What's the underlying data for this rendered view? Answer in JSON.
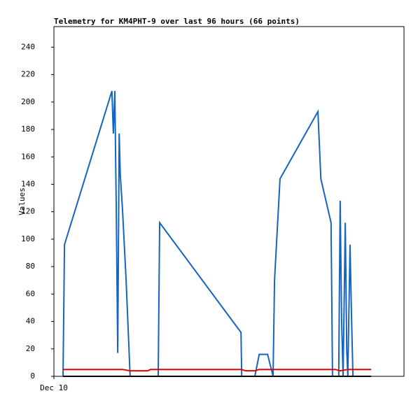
{
  "chart_data": {
    "type": "line",
    "title": "Telemetry for KM4PHT-9 over last 96 hours (66 points)",
    "y_label": "Values",
    "xlim": [
      0,
      96
    ],
    "xticks": [
      {
        "value": 0,
        "label": "Dec 10"
      }
    ],
    "ylim": [
      0,
      255
    ],
    "yticks": [
      0,
      20,
      40,
      60,
      80,
      100,
      120,
      140,
      160,
      180,
      200,
      220,
      240
    ],
    "grid": false,
    "series": [
      {
        "color": "#1565c0",
        "x": [
          2.5,
          2.7,
          2.9,
          15.9,
          16.3,
          16.7,
          17.1,
          17.5,
          17.9,
          18.2,
          18.8,
          19.8,
          20.9,
          28.6,
          29.0,
          51.3,
          51.5,
          55.1,
          56.3,
          58.6,
          60.1,
          60.5,
          62.0,
          72.4,
          73.2,
          76.0,
          76.4,
          78.1,
          78.5,
          78.9,
          79.3,
          79.9,
          80.3,
          80.6,
          81.2,
          81.6,
          82.0
        ],
        "values": [
          0,
          47,
          96,
          208,
          177,
          208,
          122,
          17,
          177,
          147,
          122,
          70,
          0,
          0,
          112,
          32,
          0,
          0,
          16,
          16,
          0,
          70,
          144,
          193,
          144,
          112,
          0,
          0,
          128,
          40,
          0,
          112,
          19,
          0,
          96,
          45,
          0
        ]
      },
      {
        "color": "#e00000",
        "x": [
          2.5,
          18.8,
          20.9,
          25.7,
          26.5,
          51.5,
          52.5,
          55.1,
          56.3,
          77.2,
          78.5,
          80.6,
          87.0
        ],
        "values": [
          5,
          5,
          4,
          4,
          5,
          5,
          4,
          4,
          5,
          5,
          4,
          5,
          5
        ]
      },
      {
        "color": "#000000",
        "x": [
          2.5,
          87.0
        ],
        "values": [
          0,
          0
        ]
      }
    ]
  }
}
